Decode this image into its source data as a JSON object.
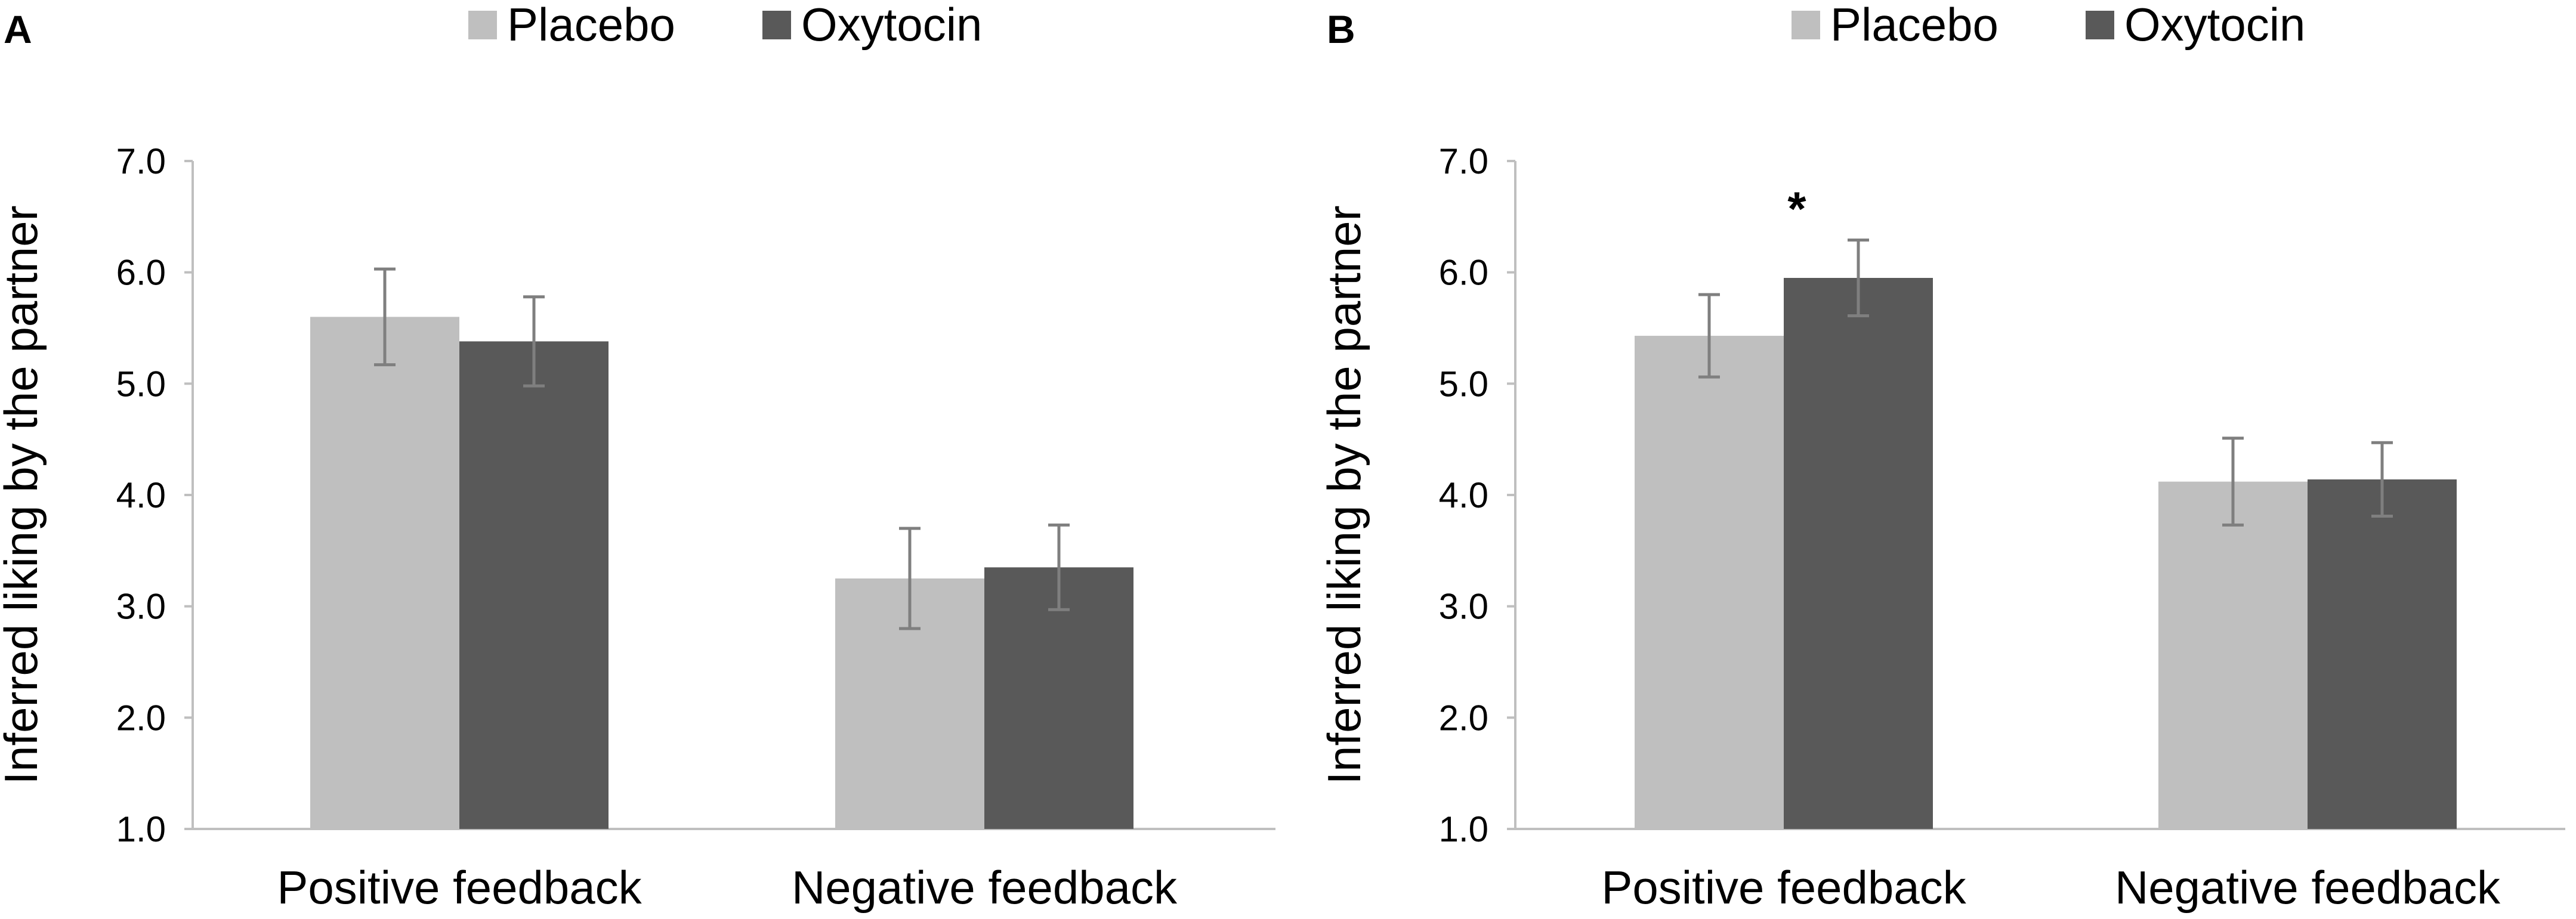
{
  "colors": {
    "placebo": "#bfbfbf",
    "oxytocin": "#595959",
    "error_bar": "#7f7f7f",
    "axis": "#bfbfbf"
  },
  "chart_data": [
    {
      "type": "bar",
      "panel": "A",
      "legend": [
        "Placebo",
        "Oxytocin"
      ],
      "legend_position": "top-center",
      "categories": [
        "Positive feedback",
        "Negative feedback"
      ],
      "series": [
        {
          "name": "Placebo",
          "values": [
            5.6,
            3.25
          ],
          "error": [
            0.43,
            0.45
          ]
        },
        {
          "name": "Oxytocin",
          "values": [
            5.38,
            3.35
          ],
          "error": [
            0.4,
            0.38
          ]
        }
      ],
      "ylabel": "Inferred liking by the partner",
      "xlabel": "",
      "ylim": [
        1.0,
        7.0
      ],
      "yticks": [
        "1.0",
        "2.0",
        "3.0",
        "4.0",
        "5.0",
        "6.0",
        "7.0"
      ],
      "annotations": []
    },
    {
      "type": "bar",
      "panel": "B",
      "legend": [
        "Placebo",
        "Oxytocin"
      ],
      "legend_position": "top-center",
      "categories": [
        "Positive feedback",
        "Negative feedback"
      ],
      "series": [
        {
          "name": "Placebo",
          "values": [
            5.43,
            4.12
          ],
          "error": [
            0.37,
            0.39
          ]
        },
        {
          "name": "Oxytocin",
          "values": [
            5.95,
            4.14
          ],
          "error": [
            0.34,
            0.33
          ]
        }
      ],
      "ylabel": "Inferred liking by the partner",
      "xlabel": "",
      "ylim": [
        1.0,
        7.0
      ],
      "yticks": [
        "1.0",
        "2.0",
        "3.0",
        "4.0",
        "5.0",
        "6.0",
        "7.0"
      ],
      "annotations": [
        {
          "text": "*",
          "category_index": 0,
          "series_index": 1
        }
      ]
    }
  ]
}
